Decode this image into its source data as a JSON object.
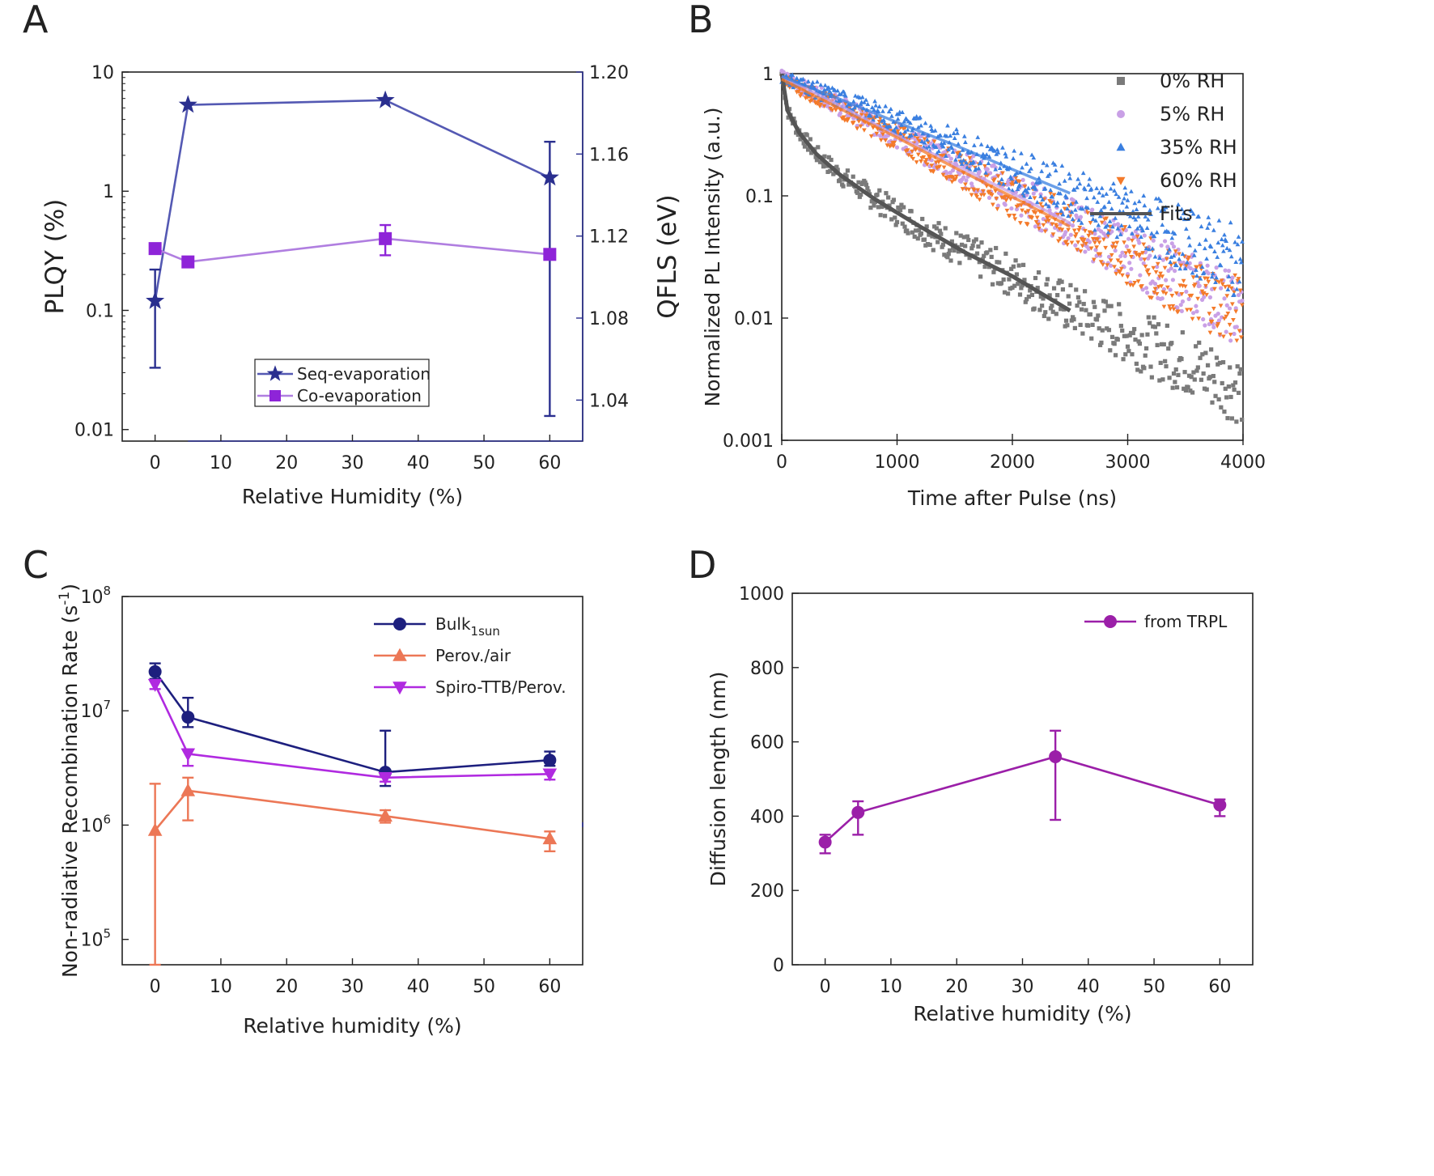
{
  "chart_data": [
    {
      "panel": "A",
      "type": "line",
      "xlabel": "Relative Humidity (%)",
      "ylabel": "PLQY (%)",
      "y2label": "QFLS (eV)",
      "xlim": [
        -5,
        65
      ],
      "ylim": [
        0.008,
        10
      ],
      "y2lim": [
        1.02,
        1.2
      ],
      "yscale": "log",
      "x_ticks": [
        0,
        10,
        20,
        30,
        40,
        50,
        60
      ],
      "y_ticks": [
        0.01,
        0.1,
        1,
        10
      ],
      "y_tick_labels": [
        "0.01",
        "0.1",
        "1",
        "10"
      ],
      "y2_ticks": [
        1.04,
        1.08,
        1.12,
        1.16,
        1.2
      ],
      "y2_tick_labels": [
        "1.04",
        "1.08",
        "1.12",
        "1.16",
        "1.20"
      ],
      "legend_position": "bottom-center",
      "series": [
        {
          "name": "Seq-evaporation",
          "marker": "star",
          "color": "#2a2f8f",
          "line_color": "#5459b3",
          "x": [
            0,
            5,
            35,
            60
          ],
          "y": [
            0.12,
            5.3,
            5.8,
            1.3
          ],
          "err_low": [
            0.033,
            5.3,
            5.8,
            0.013
          ],
          "err_high": [
            0.22,
            5.3,
            5.8,
            2.6
          ]
        },
        {
          "name": "Co-evaporation",
          "marker": "square",
          "color": "#8e24d8",
          "line_color": "#b07ee0",
          "x": [
            0,
            5,
            35,
            60
          ],
          "y": [
            0.33,
            0.255,
            0.4,
            0.295
          ],
          "err_low": [
            0.31,
            0.24,
            0.29,
            0.27
          ],
          "err_high": [
            0.35,
            0.27,
            0.52,
            0.32
          ]
        }
      ]
    },
    {
      "panel": "B",
      "type": "scatter",
      "xlabel": "Time after Pulse (ns)",
      "ylabel": "Normalized PL Intensity (a.u.)",
      "xlim": [
        0,
        4000
      ],
      "ylim": [
        0.001,
        1
      ],
      "yscale": "log",
      "x_ticks": [
        0,
        1000,
        2000,
        3000,
        4000
      ],
      "y_ticks": [
        0.001,
        0.01,
        0.1,
        1
      ],
      "y_tick_labels": [
        "0.001",
        "0.01",
        "0.1",
        "1"
      ],
      "legend_position": "top-right",
      "series": [
        {
          "name": "0% RH",
          "marker": "square",
          "color": "#7a7a7a",
          "decay": [
            [
              0,
              1.0
            ],
            [
              50,
              0.5
            ],
            [
              150,
              0.33
            ],
            [
              300,
              0.22
            ],
            [
              500,
              0.15
            ],
            [
              800,
              0.095
            ],
            [
              1200,
              0.056
            ],
            [
              1600,
              0.034
            ],
            [
              2000,
              0.022
            ],
            [
              2500,
              0.012
            ]
          ]
        },
        {
          "name": "5% RH",
          "marker": "circle",
          "color": "#c9a0e6",
          "decay": [
            [
              0,
              0.95
            ],
            [
              500,
              0.55
            ],
            [
              1000,
              0.31
            ],
            [
              1500,
              0.18
            ],
            [
              2000,
              0.105
            ],
            [
              2500,
              0.06
            ],
            [
              3000,
              0.034
            ],
            [
              3500,
              0.02
            ],
            [
              4000,
              0.011
            ]
          ]
        },
        {
          "name": "35% RH",
          "marker": "triangle-up",
          "color": "#3a7fe0",
          "decay": [
            [
              0,
              0.95
            ],
            [
              500,
              0.62
            ],
            [
              1000,
              0.4
            ],
            [
              1500,
              0.26
            ],
            [
              2000,
              0.165
            ],
            [
              2500,
              0.105
            ],
            [
              3000,
              0.068
            ],
            [
              3500,
              0.044
            ],
            [
              4000,
              0.028
            ]
          ]
        },
        {
          "name": "60% RH",
          "marker": "triangle-down",
          "color": "#f47a2a",
          "decay": [
            [
              0,
              0.9
            ],
            [
              500,
              0.52
            ],
            [
              1000,
              0.3
            ],
            [
              1500,
              0.17
            ],
            [
              2000,
              0.098
            ],
            [
              2500,
              0.056
            ],
            [
              3000,
              0.032
            ],
            [
              3500,
              0.018
            ],
            [
              4000,
              0.011
            ]
          ]
        },
        {
          "name": "Fits",
          "marker": "line",
          "color": "#555555",
          "decay": [
            [
              0,
              1.0
            ],
            [
              50,
              0.5
            ],
            [
              150,
              0.33
            ],
            [
              300,
              0.22
            ],
            [
              500,
              0.15
            ],
            [
              800,
              0.095
            ],
            [
              1200,
              0.056
            ],
            [
              1600,
              0.034
            ],
            [
              2000,
              0.022
            ],
            [
              2500,
              0.0115
            ]
          ]
        }
      ]
    },
    {
      "panel": "C",
      "type": "line",
      "xlabel": "Relative humidity  (%)",
      "ylabel": "Non-radiative Recombination Rate (s",
      "ylabel_sup": "-1",
      "ylabel_end": ")",
      "xlim": [
        -5,
        65
      ],
      "ylim": [
        60000,
        100000000
      ],
      "yscale": "log",
      "x_ticks": [
        0,
        10,
        20,
        30,
        40,
        50,
        60
      ],
      "y_ticks": [
        100000,
        1000000,
        10000000,
        100000000
      ],
      "y_tick_base": "10",
      "y_tick_exp": [
        "5",
        "6",
        "7",
        "8"
      ],
      "legend_position": "top-right",
      "series": [
        {
          "name": "Bulk",
          "name_sub": "1sun",
          "marker": "circle",
          "color": "#1d1f7e",
          "x": [
            0,
            5,
            35,
            60
          ],
          "y": [
            22000000,
            8800000,
            2900000,
            3700000
          ],
          "err_low": [
            19000000,
            7200000,
            2200000,
            3300000
          ],
          "err_high": [
            26000000,
            13000000,
            6700000,
            4400000
          ]
        },
        {
          "name": "Perov./air",
          "marker": "triangle-up",
          "color": "#ec7756",
          "x": [
            0,
            5,
            35,
            60
          ],
          "y": [
            900000,
            2000000,
            1200000,
            760000
          ],
          "err_low": [
            60000,
            1100000,
            1050000,
            590000
          ],
          "err_high": [
            2300000,
            2600000,
            1350000,
            880000
          ]
        },
        {
          "name": "Spiro-TTB/Perov.",
          "marker": "triangle-down",
          "color": "#b02ae0",
          "x": [
            0,
            5,
            35,
            60
          ],
          "y": [
            17000000,
            4200000,
            2600000,
            2800000
          ],
          "err_low": [
            15500000,
            3300000,
            2400000,
            2500000
          ],
          "err_high": [
            18500000,
            4600000,
            2800000,
            3000000
          ]
        }
      ]
    },
    {
      "panel": "D",
      "type": "line",
      "xlabel": "Relative humidity (%)",
      "ylabel": "Diffusion length (nm)",
      "xlim": [
        -5,
        65
      ],
      "ylim": [
        0,
        1000
      ],
      "x_ticks": [
        0,
        10,
        20,
        30,
        40,
        50,
        60
      ],
      "y_ticks": [
        0,
        200,
        400,
        600,
        800,
        1000
      ],
      "legend_position": "top-right",
      "series": [
        {
          "name": "from TRPL",
          "marker": "circle",
          "color": "#9b1fa8",
          "x": [
            0,
            5,
            35,
            60
          ],
          "y": [
            330,
            410,
            560,
            430
          ],
          "err_low": [
            300,
            350,
            390,
            400
          ],
          "err_high": [
            350,
            440,
            630,
            445
          ]
        }
      ]
    }
  ]
}
